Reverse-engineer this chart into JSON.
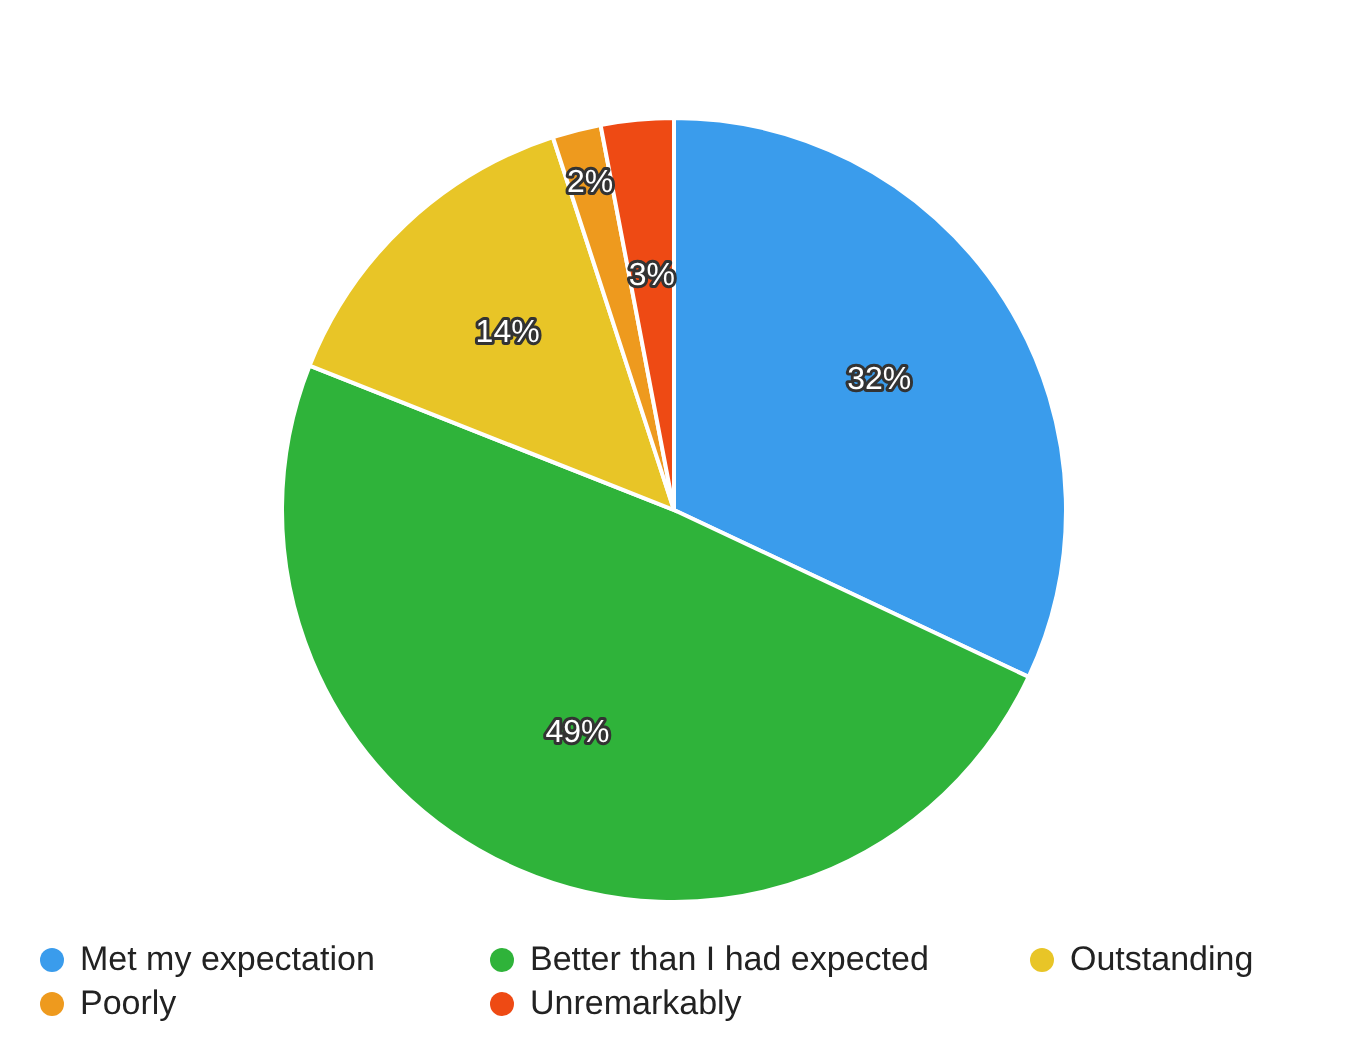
{
  "chart_data": {
    "type": "pie",
    "categories": [
      "Met my expectation",
      "Better than I had expected",
      "Outstanding",
      "Poorly",
      "Unremarkably"
    ],
    "values": [
      32,
      49,
      14,
      2,
      3
    ],
    "value_labels": [
      "32%",
      "49%",
      "14%",
      "2%",
      "3%"
    ],
    "colors": [
      "#3a9cec",
      "#2fb33a",
      "#e8c527",
      "#ee9a1e",
      "#ee4a14"
    ],
    "legend": "bottom"
  }
}
